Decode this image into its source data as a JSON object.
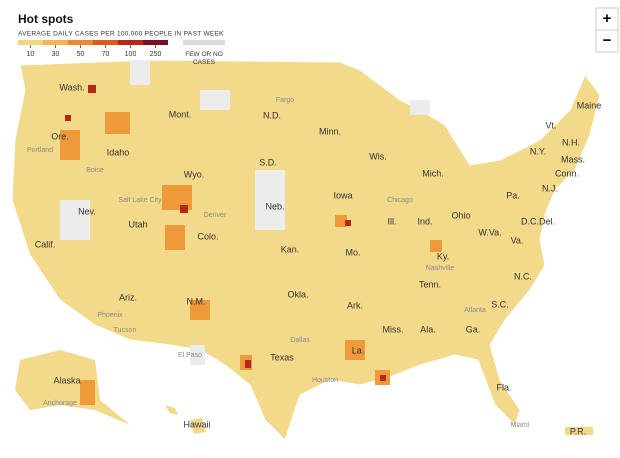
{
  "header": {
    "title": "Hot spots",
    "subtitle": "AVERAGE DAILY CASES PER 100,000 PEOPLE IN PAST WEEK"
  },
  "legend": {
    "ticks": [
      10,
      30,
      50,
      70,
      100,
      250
    ],
    "colors": [
      "#f4d67c",
      "#f2b44f",
      "#ee8a2e",
      "#dc5a1f",
      "#b8261a",
      "#7d0f24"
    ],
    "no_data_label": "FEW OR NO CASES",
    "no_data_color": "#dcdcdc"
  },
  "controls": {
    "zoom_in": "+",
    "zoom_out": "−"
  },
  "states": [
    "Wash.",
    "Ore.",
    "Calif.",
    "Nev.",
    "Idaho",
    "Mont.",
    "Wyo.",
    "Utah",
    "Colo.",
    "Ariz.",
    "N.M.",
    "N.D.",
    "S.D.",
    "Neb.",
    "Kan.",
    "Okla.",
    "Texas",
    "Minn.",
    "Iowa",
    "Mo.",
    "Ark.",
    "La.",
    "Wis.",
    "Ill.",
    "Mich.",
    "Ind.",
    "Ohio",
    "Ky.",
    "Tenn.",
    "Miss.",
    "Ala.",
    "Ga.",
    "Fla.",
    "S.C.",
    "N.C.",
    "Va.",
    "W.Va.",
    "Pa.",
    "N.Y.",
    "Maine",
    "N.H.",
    "Vt.",
    "Mass.",
    "Conn.",
    "N.J.",
    "Del.",
    "D.C.",
    "Alaska",
    "Hawaii",
    "P.R."
  ],
  "cities": [
    "Portland",
    "Boise",
    "Salt Lake City",
    "Denver",
    "Phoenix",
    "Tucson",
    "El Paso",
    "Dallas",
    "Houston",
    "Chicago",
    "Nashville",
    "Atlanta",
    "Miami",
    "Fargo",
    "Anchorage"
  ]
}
